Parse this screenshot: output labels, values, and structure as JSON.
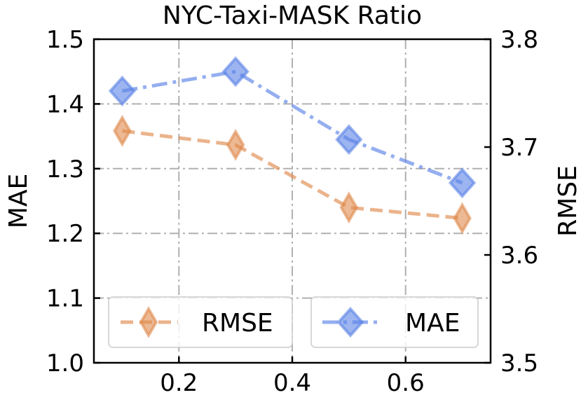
{
  "chart_data": {
    "type": "line",
    "title": "NYC-Taxi-MASK Ratio",
    "xlabel": "",
    "ylabel_left": "MAE",
    "ylabel_right": "RMSE",
    "x": [
      0.1,
      0.3,
      0.5,
      0.7
    ],
    "xlim": [
      0.05,
      0.75
    ],
    "xticks": [
      "0.2",
      "0.4",
      "0.6"
    ],
    "ylim_left": [
      1.0,
      1.5
    ],
    "yticks_left": [
      "1.0",
      "1.1",
      "1.2",
      "1.3",
      "1.4",
      "1.5"
    ],
    "ylim_right": [
      3.5,
      3.8
    ],
    "yticks_right": [
      "3.5",
      "3.6",
      "3.7",
      "3.8"
    ],
    "grid": true,
    "legend_position": "bottom",
    "series": [
      {
        "name": "RMSE",
        "axis": "right",
        "values": [
          3.715,
          3.702,
          3.644,
          3.634
        ],
        "color": "#e08a4d",
        "linestyle": "dashed",
        "marker": "thin-diamond"
      },
      {
        "name": "MAE",
        "axis": "left",
        "values": [
          1.42,
          1.45,
          1.345,
          1.278
        ],
        "color": "#5a82e6",
        "linestyle": "dash-dot",
        "marker": "diamond"
      }
    ]
  }
}
